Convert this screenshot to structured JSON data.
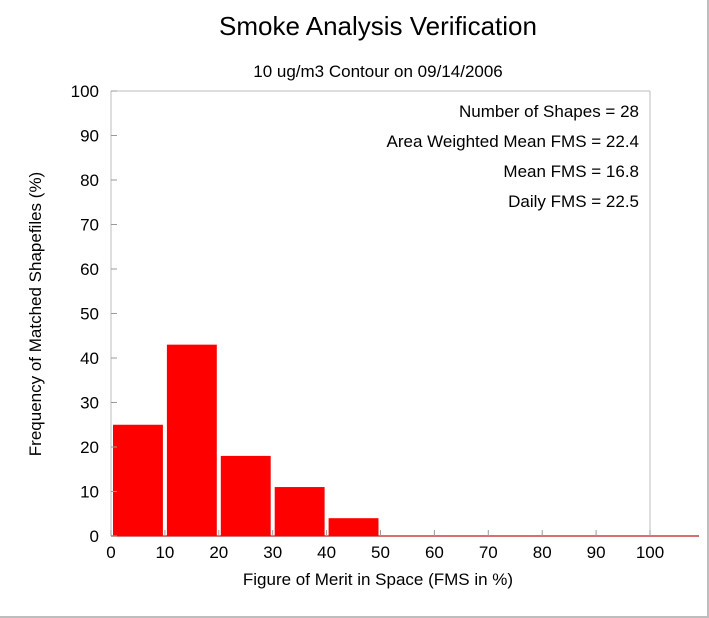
{
  "chart_data": {
    "type": "bar",
    "title": "Smoke Analysis Verification",
    "subtitle": "10 ug/m3 Contour on 09/14/2006",
    "xlabel": "Figure of Merit in Space (FMS in %)",
    "ylabel": "Frequency of Matched Shapefiles (%)",
    "bin_edges": [
      0,
      10,
      20,
      30,
      40,
      50,
      60,
      70,
      80,
      90,
      100
    ],
    "values": [
      25,
      43,
      18,
      11,
      4,
      0,
      0,
      0,
      0,
      0
    ],
    "xlim": [
      0,
      100
    ],
    "ylim": [
      0,
      100
    ],
    "xticks": [
      0,
      10,
      20,
      30,
      40,
      50,
      60,
      70,
      80,
      90,
      100
    ],
    "yticks": [
      0,
      10,
      20,
      30,
      40,
      50,
      60,
      70,
      80,
      90,
      100
    ],
    "grid": false,
    "bar_color": "#ff0000",
    "annotations": [
      "Number of Shapes = 28",
      "Area Weighted Mean FMS = 22.4",
      "Mean FMS = 16.8",
      "Daily FMS = 22.5"
    ]
  }
}
